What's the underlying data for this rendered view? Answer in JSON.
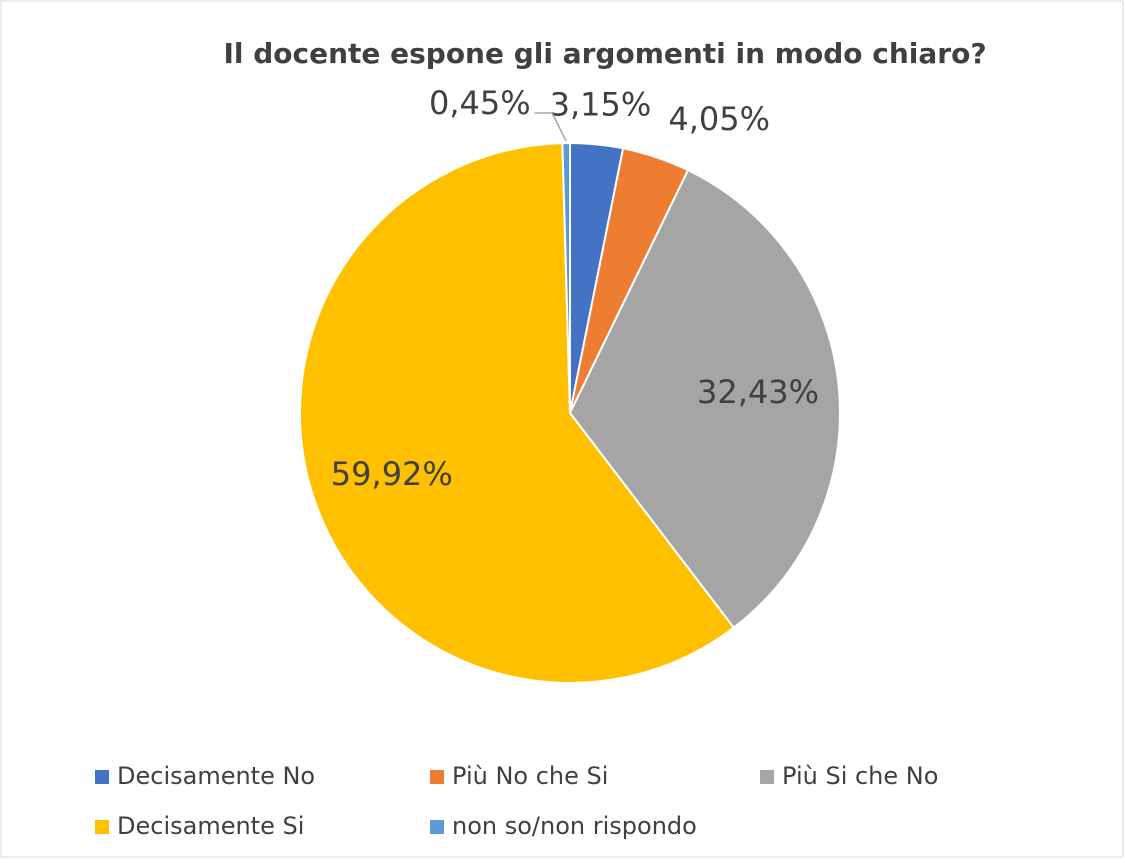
{
  "chart_data": {
    "type": "pie",
    "title": "Il docente espone gli argomenti in modo chiaro?",
    "categories": [
      "Decisamente No",
      "Più No che Si",
      "Più Si che No",
      "Decisamente Si",
      "non so/non rispondo"
    ],
    "values": [
      3.15,
      4.05,
      32.43,
      59.92,
      0.45
    ],
    "value_labels": [
      "3,15%",
      "4,05%",
      "32,43%",
      "59,92%",
      "0,45%"
    ],
    "colors": [
      "#4472c4",
      "#ed7d31",
      "#a5a5a5",
      "#ffc000",
      "#5b9bd5"
    ],
    "legend": "bottom"
  }
}
